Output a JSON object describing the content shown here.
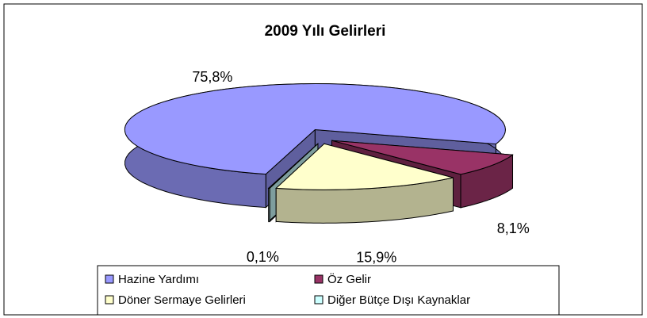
{
  "chart_data": {
    "type": "pie",
    "title": "2009 Yılı Gelirleri",
    "categories": [
      "Hazine Yardımı",
      "Öz Gelir",
      "Döner Sermaye Gelirleri",
      "Diğer Bütçe Dışı Kaynaklar"
    ],
    "values": [
      75.8,
      8.1,
      15.9,
      0.1
    ],
    "value_labels": [
      "75,8%",
      "8,1%",
      "15,9%",
      "0,1%"
    ],
    "colors": [
      "#9999ff",
      "#993366",
      "#ffffcc",
      "#ccffff"
    ],
    "legend": "bottom"
  }
}
